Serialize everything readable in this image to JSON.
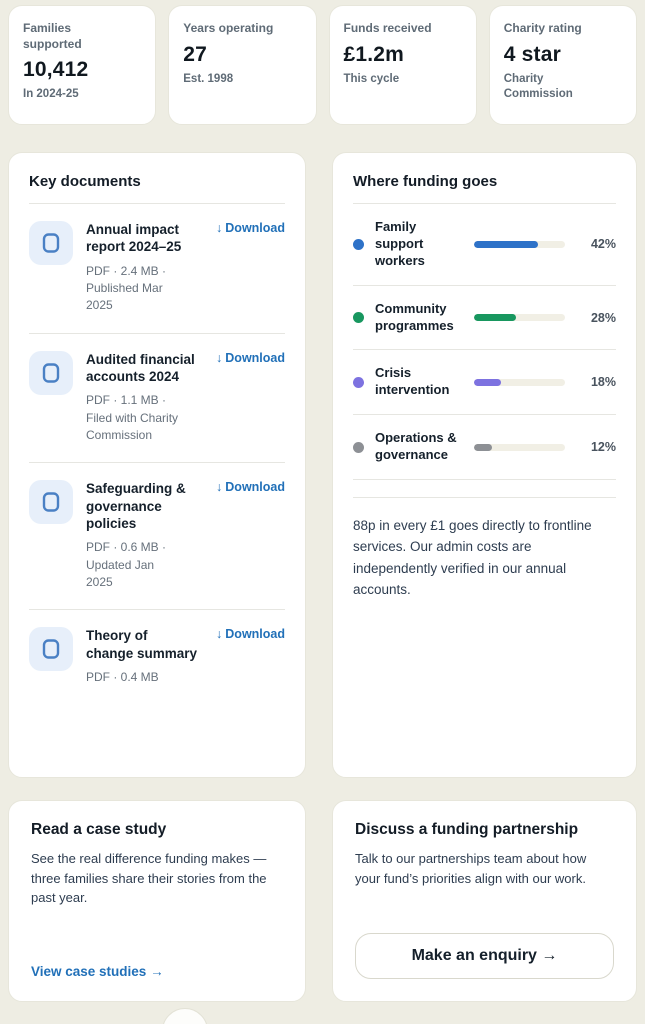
{
  "stats": [
    {
      "label": "Families supported",
      "value": "10,412",
      "sub": "In 2024-25"
    },
    {
      "label": "Years operating",
      "value": "27",
      "sub": "Est. 1998"
    },
    {
      "label": "Funds received",
      "value": "£1.2m",
      "sub": "This cycle"
    },
    {
      "label": "Charity rating",
      "value": "4 star",
      "sub": "Charity Commission"
    }
  ],
  "documents": {
    "title": "Key documents",
    "download_icon": "↓",
    "download_label": "Download",
    "items": [
      {
        "title": "Annual impact report 2024–25",
        "meta": "PDF · 2.4 MB · Published Mar 2025"
      },
      {
        "title": "Audited financial accounts 2024",
        "meta": "PDF · 1.1 MB · Filed with Charity Commission"
      },
      {
        "title": "Safeguarding & governance policies",
        "meta": "PDF · 0.6 MB · Updated Jan 2025"
      },
      {
        "title": "Theory of change summary",
        "meta": "PDF · 0.4 MB"
      }
    ]
  },
  "funding": {
    "title": "Where funding goes",
    "footnote": "88p in every £1 goes directly to frontline services. Our admin costs are independently verified in our annual accounts."
  },
  "chart_data": {
    "type": "bar",
    "title": "Where funding goes",
    "categories": [
      "Family support workers",
      "Community programmes",
      "Crisis intervention",
      "Operations & governance"
    ],
    "values": [
      42,
      28,
      18,
      12
    ],
    "unit": "%",
    "colors": [
      "#2e72c8",
      "#18975f",
      "#7d72e0",
      "#8d9095"
    ],
    "bar_display_max": 60,
    "track_color": "#f1efe5",
    "grid": false,
    "legend_position": "none"
  },
  "case_study": {
    "title": "Read a case study",
    "body": "See the real difference funding makes — three families share their stories from the past year.",
    "link": "View case studies →"
  },
  "partnership": {
    "title": "Discuss a funding partnership",
    "body": "Talk to our partnerships team about how your fund’s priorities align with our work.",
    "button": "Make an enquiry →"
  },
  "colors": {
    "accent_blue": "#2170b8",
    "page_bg": "#eeede3",
    "card_bg": "#ffffff"
  }
}
